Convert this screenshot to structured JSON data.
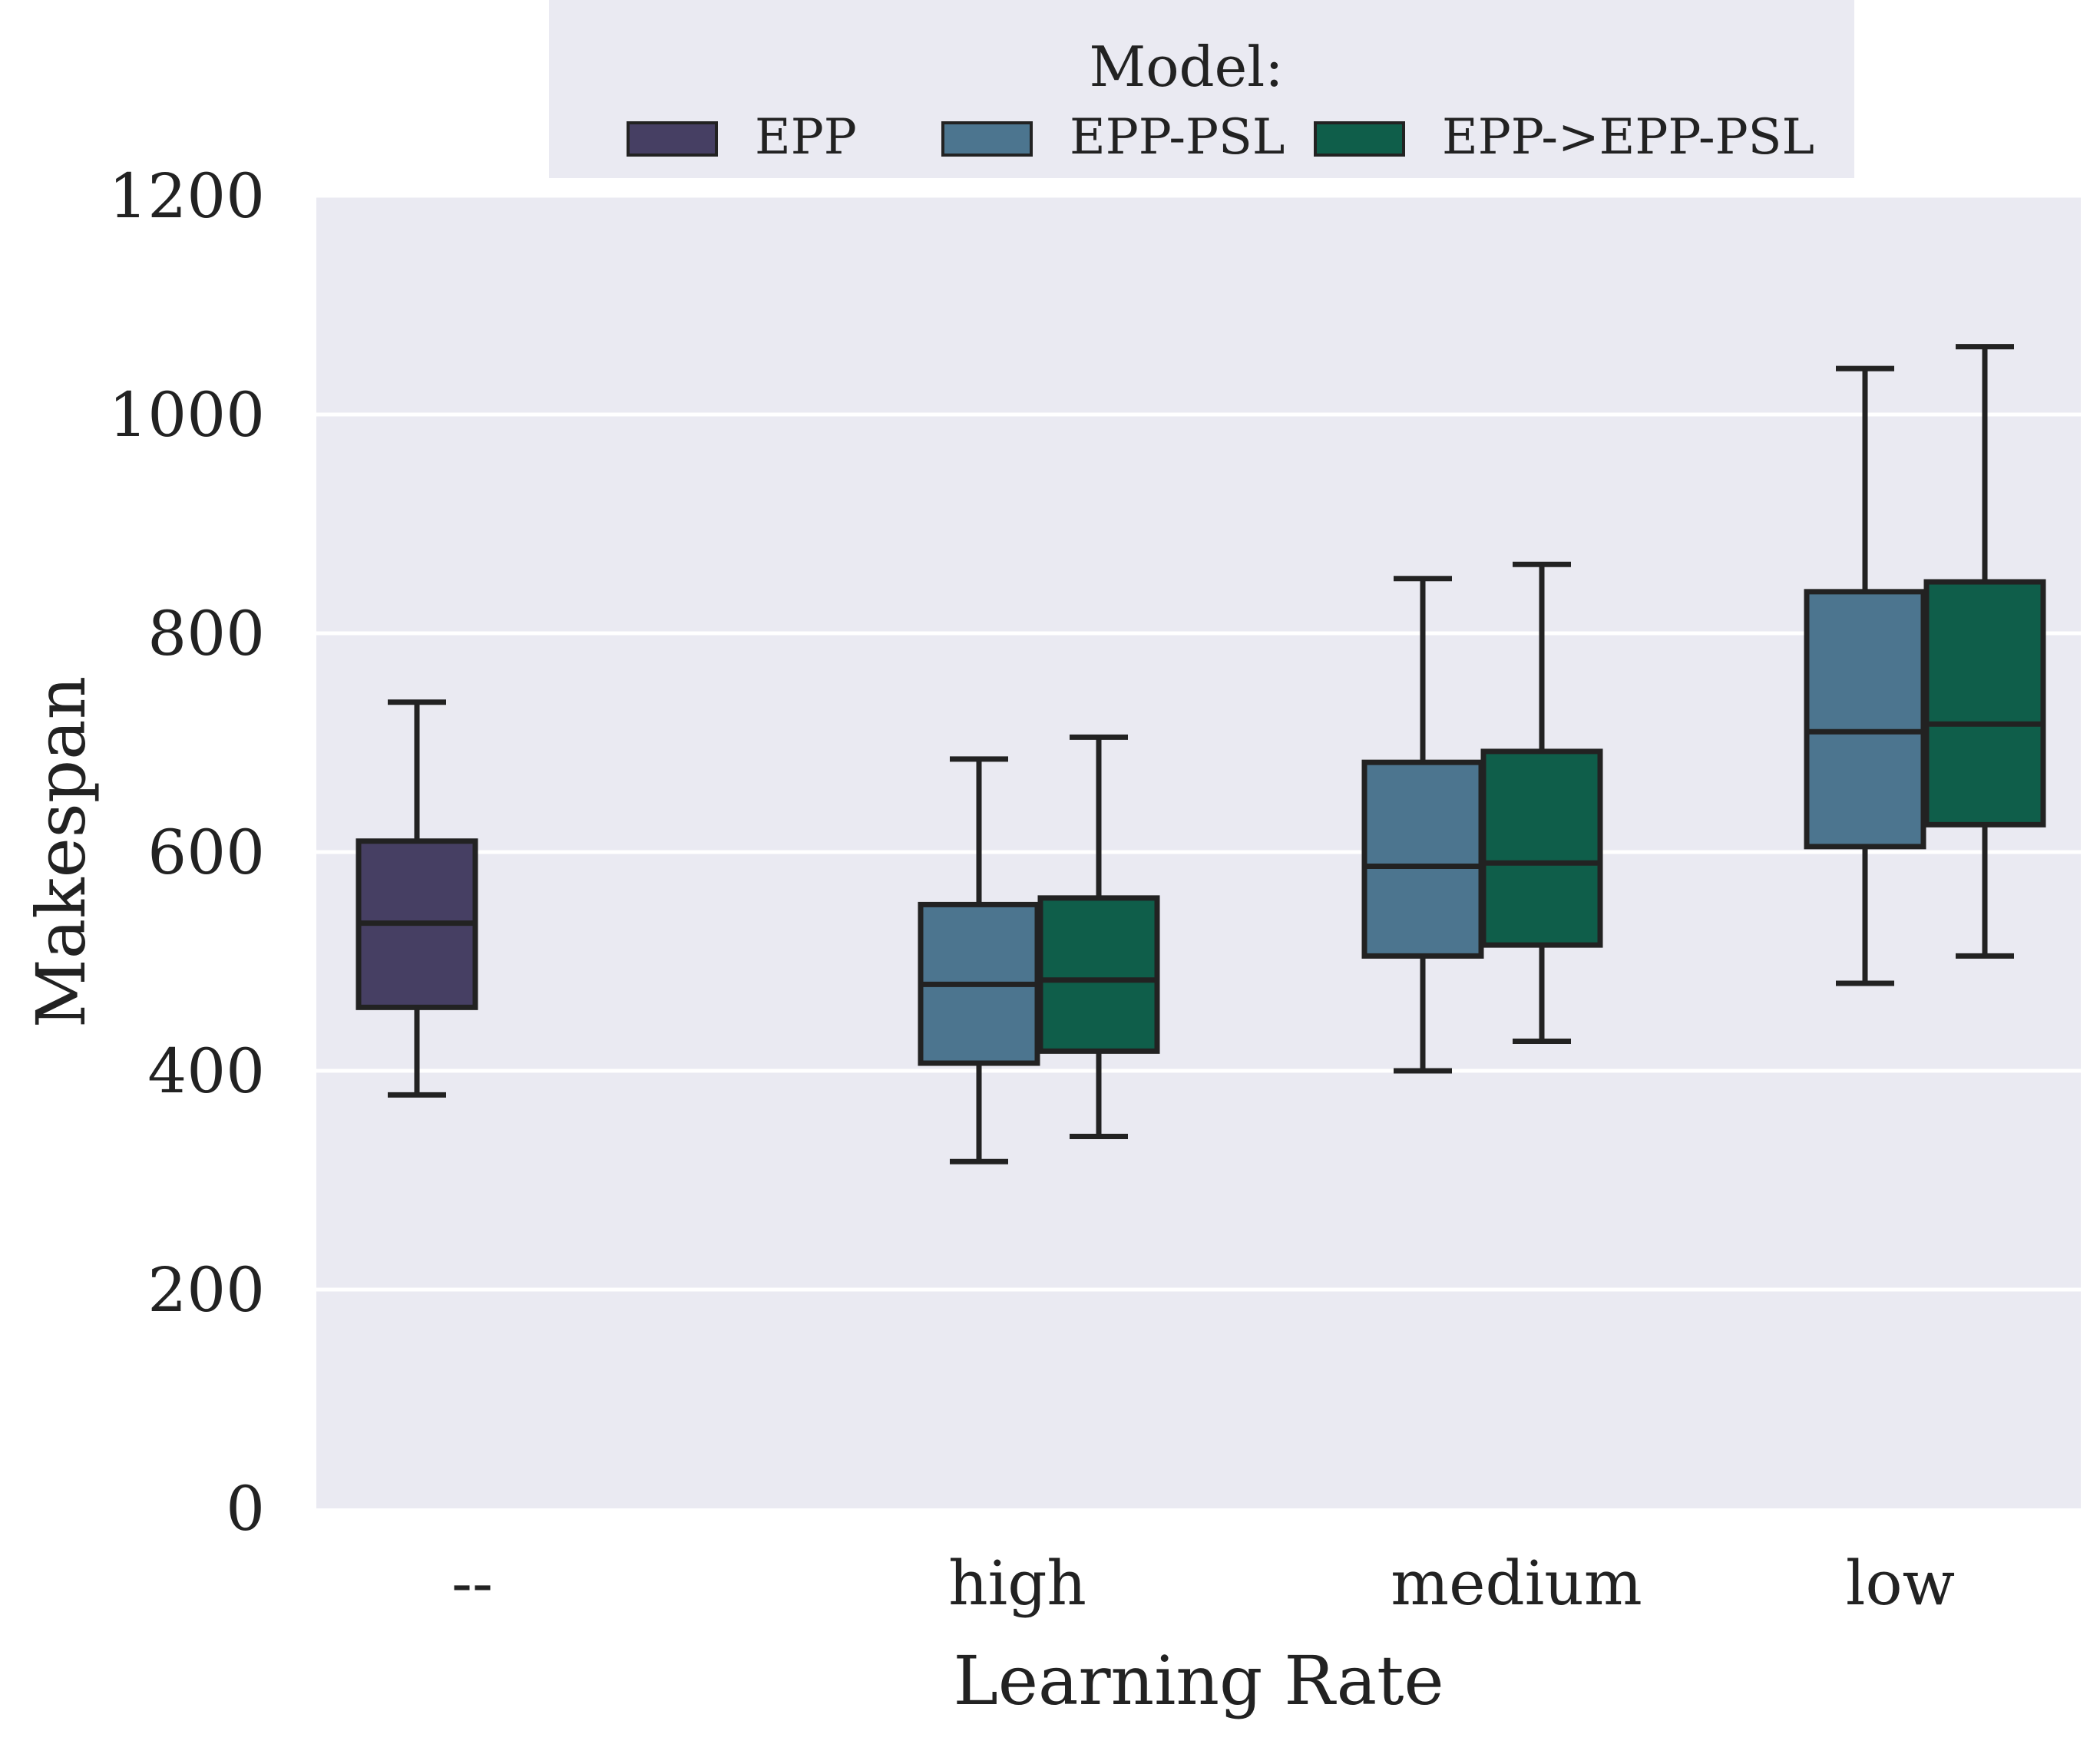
{
  "chart_data": {
    "type": "boxplot",
    "xlabel": "Learning Rate",
    "ylabel": "Makespan",
    "ylim": [
      0,
      1200
    ],
    "yticks": [
      0,
      200,
      400,
      600,
      800,
      1000,
      1200
    ],
    "grid": true,
    "categories": [
      "--",
      "high",
      "medium",
      "low"
    ],
    "legend": {
      "title": "Model:",
      "placement": "top-center",
      "entries": [
        "EPP",
        "EPP-PSL",
        "EPP->EPP-PSL"
      ]
    },
    "series": [
      {
        "name": "EPP",
        "color": "#463f63",
        "boxes": [
          {
            "category": "--",
            "whisker_low": 378,
            "q1": 458,
            "median": 535,
            "q3": 610,
            "whisker_high": 737
          }
        ]
      },
      {
        "name": "EPP-PSL",
        "color": "#4c758f",
        "boxes": [
          {
            "category": "high",
            "whisker_low": 317,
            "q1": 407,
            "median": 479,
            "q3": 552,
            "whisker_high": 685
          },
          {
            "category": "medium",
            "whisker_low": 400,
            "q1": 505,
            "median": 587,
            "q3": 682,
            "whisker_high": 850
          },
          {
            "category": "low",
            "whisker_low": 480,
            "q1": 605,
            "median": 710,
            "q3": 838,
            "whisker_high": 1042
          }
        ]
      },
      {
        "name": "EPP->EPP-PSL",
        "color": "#0f5e4a",
        "boxes": [
          {
            "category": "high",
            "whisker_low": 340,
            "q1": 418,
            "median": 483,
            "q3": 558,
            "whisker_high": 705
          },
          {
            "category": "medium",
            "whisker_low": 427,
            "q1": 515,
            "median": 590,
            "q3": 692,
            "whisker_high": 863
          },
          {
            "category": "low",
            "whisker_low": 505,
            "q1": 625,
            "median": 717,
            "q3": 847,
            "whisker_high": 1062
          }
        ]
      }
    ]
  }
}
